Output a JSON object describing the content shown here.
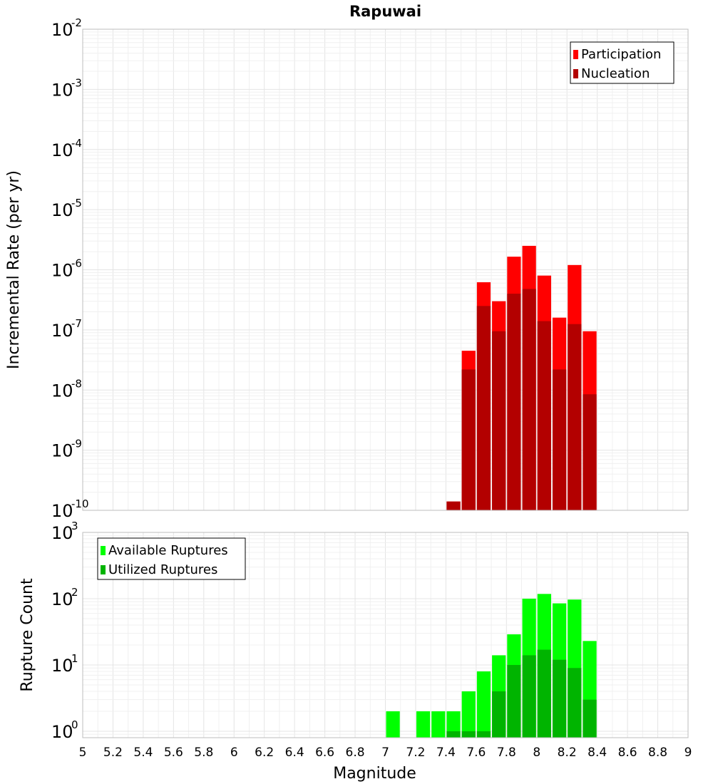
{
  "chart_data": [
    {
      "type": "bar",
      "title": "Rapuwai",
      "ylabel": "Incremental Rate (per yr)",
      "xlim": [
        5,
        9
      ],
      "ylim": [
        1e-10,
        0.01
      ],
      "yscale": "log",
      "y_tick_exponents": [
        "-10",
        "-9",
        "-8",
        "-7",
        "-6",
        "-5",
        "-4",
        "-3",
        "-2"
      ],
      "grid": true,
      "legend_position": "top-right",
      "bar_width": 0.1,
      "series": [
        {
          "name": "Participation",
          "color": "#ff0000",
          "x": [
            7.45,
            7.55,
            7.65,
            7.75,
            7.85,
            7.95,
            8.05,
            8.15,
            8.25,
            8.35
          ],
          "values": [
            1.4e-10,
            4.5e-08,
            6.2e-07,
            3e-07,
            1.65e-06,
            2.5e-06,
            8e-07,
            1.6e-07,
            1.2e-06,
            9.5e-08
          ]
        },
        {
          "name": "Nucleation",
          "color": "#b30000",
          "x": [
            7.45,
            7.55,
            7.65,
            7.75,
            7.85,
            7.95,
            8.05,
            8.15,
            8.25,
            8.35
          ],
          "values": [
            1.4e-10,
            2.2e-08,
            2.5e-07,
            9.5e-08,
            4e-07,
            4.8e-07,
            1.4e-07,
            2.2e-08,
            1.25e-07,
            8.5e-09
          ]
        }
      ]
    },
    {
      "type": "bar",
      "xlabel": "Magnitude",
      "ylabel": "Rupture Count",
      "xlim": [
        5,
        9
      ],
      "ylim": [
        0.8,
        1000
      ],
      "yscale": "log",
      "y_tick_exponents": [
        "0",
        "1",
        "2",
        "3"
      ],
      "x_ticks": [
        "5",
        "5.2",
        "5.4",
        "5.6",
        "5.8",
        "6",
        "6.2",
        "6.4",
        "6.6",
        "6.8",
        "7",
        "7.2",
        "7.4",
        "7.6",
        "7.8",
        "8",
        "8.2",
        "8.4",
        "8.6",
        "8.8",
        "9"
      ],
      "grid": true,
      "legend_position": "top-left",
      "bar_width": 0.1,
      "series": [
        {
          "name": "Available Ruptures",
          "color": "#00ff00",
          "x": [
            7.05,
            7.25,
            7.35,
            7.45,
            7.55,
            7.65,
            7.75,
            7.85,
            7.95,
            8.05,
            8.15,
            8.25,
            8.35
          ],
          "values": [
            2,
            2,
            2,
            2,
            4,
            8,
            14,
            29,
            100,
            118,
            85,
            97,
            23
          ]
        },
        {
          "name": "Utilized Ruptures",
          "color": "#00b400",
          "x": [
            7.45,
            7.55,
            7.65,
            7.75,
            7.85,
            7.95,
            8.05,
            8.15,
            8.25,
            8.35
          ],
          "values": [
            1,
            1,
            1,
            4,
            10,
            14,
            17,
            12,
            9,
            3
          ]
        }
      ]
    }
  ]
}
